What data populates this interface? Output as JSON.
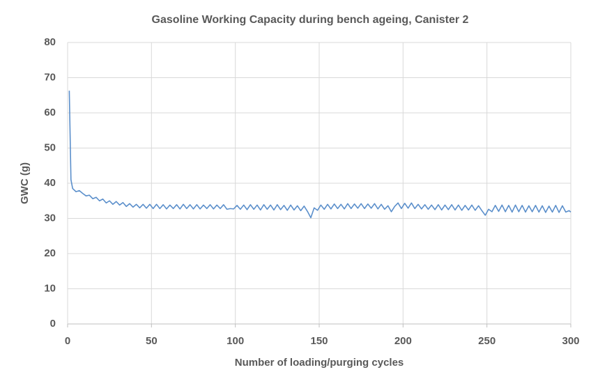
{
  "chart_data": {
    "type": "line",
    "title": "Gasoline Working Capacity during bench ageing, Canister 2",
    "x_label": "Number of loading/purging cycles",
    "y_label": "GWC (g)",
    "color": "#5b8fcb",
    "grid": true,
    "xlim": [
      0,
      300
    ],
    "xticks": [
      0,
      50,
      100,
      150,
      200,
      250,
      300
    ],
    "ylim": [
      0,
      80
    ],
    "yticks": [
      0,
      10,
      20,
      30,
      40,
      50,
      60,
      70,
      80
    ],
    "x": [
      1,
      2,
      3,
      5,
      7,
      9,
      11,
      13,
      15,
      17,
      19,
      21,
      23,
      25,
      27,
      29,
      31,
      33,
      35,
      37,
      39,
      41,
      43,
      45,
      47,
      49,
      51,
      53,
      55,
      57,
      59,
      61,
      63,
      65,
      67,
      69,
      71,
      73,
      75,
      77,
      79,
      81,
      83,
      85,
      87,
      89,
      91,
      93,
      95,
      97,
      99,
      101,
      103,
      105,
      107,
      109,
      111,
      113,
      115,
      117,
      119,
      121,
      123,
      125,
      127,
      129,
      131,
      133,
      135,
      137,
      139,
      141,
      143,
      145,
      147,
      149,
      151,
      153,
      155,
      157,
      159,
      161,
      163,
      165,
      167,
      169,
      171,
      173,
      175,
      177,
      179,
      181,
      183,
      185,
      187,
      189,
      191,
      193,
      195,
      197,
      199,
      201,
      203,
      205,
      207,
      209,
      211,
      213,
      215,
      217,
      219,
      221,
      223,
      225,
      227,
      229,
      231,
      233,
      235,
      237,
      239,
      241,
      243,
      245,
      247,
      249,
      251,
      253,
      255,
      257,
      259,
      261,
      263,
      265,
      267,
      269,
      271,
      273,
      275,
      277,
      279,
      281,
      283,
      285,
      287,
      289,
      291,
      293,
      295,
      297,
      299,
      300
    ],
    "values": [
      66.3,
      41.0,
      38.5,
      37.6,
      37.9,
      37.1,
      36.4,
      36.6,
      35.6,
      36.0,
      35.0,
      35.5,
      34.4,
      35.0,
      34.0,
      34.8,
      33.8,
      34.5,
      33.4,
      34.2,
      33.2,
      34.0,
      33.0,
      34.0,
      32.9,
      34.0,
      32.8,
      34.0,
      32.8,
      33.9,
      32.7,
      33.8,
      32.8,
      33.9,
      32.7,
      34.0,
      32.8,
      33.9,
      32.7,
      33.9,
      32.7,
      33.8,
      32.8,
      33.9,
      32.7,
      33.8,
      32.8,
      33.9,
      32.6,
      32.8,
      32.7,
      33.7,
      32.6,
      33.8,
      32.5,
      33.9,
      32.6,
      33.8,
      32.4,
      33.9,
      32.6,
      33.8,
      32.4,
      33.9,
      32.5,
      33.7,
      32.3,
      33.8,
      32.4,
      33.6,
      32.2,
      33.5,
      32.0,
      30.2,
      33.0,
      32.3,
      33.8,
      32.6,
      34.0,
      32.7,
      34.1,
      32.8,
      34.0,
      32.7,
      34.2,
      32.8,
      34.1,
      32.9,
      34.2,
      32.8,
      34.1,
      32.9,
      34.2,
      32.7,
      34.0,
      32.6,
      33.6,
      31.9,
      33.4,
      34.4,
      32.8,
      34.3,
      32.9,
      34.4,
      32.8,
      34.0,
      32.7,
      33.9,
      32.6,
      33.8,
      32.5,
      33.9,
      32.4,
      33.8,
      32.5,
      33.9,
      32.4,
      33.8,
      32.3,
      33.7,
      32.4,
      33.8,
      32.3,
      33.6,
      32.2,
      30.9,
      32.6,
      31.9,
      33.7,
      32.0,
      33.8,
      31.9,
      33.7,
      31.8,
      33.8,
      31.9,
      33.7,
      31.8,
      33.6,
      31.9,
      33.7,
      31.8,
      33.6,
      31.7,
      33.5,
      31.8,
      33.7,
      31.7,
      33.6,
      31.8,
      32.2,
      31.8
    ]
  }
}
